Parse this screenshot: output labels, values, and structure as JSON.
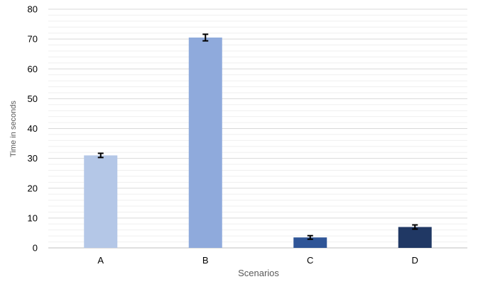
{
  "chart_data": {
    "type": "bar",
    "categories": [
      "A",
      "B",
      "C",
      "D"
    ],
    "values": [
      31,
      70.5,
      3.5,
      7
    ],
    "error": [
      0.7,
      1.1,
      0.6,
      0.7
    ],
    "colors": [
      "#b4c7e7",
      "#8faadc",
      "#2f5597",
      "#203864"
    ],
    "xlabel": "Scenarios",
    "ylabel": "Time in seconds",
    "ylim": [
      0,
      80
    ],
    "yticks": [
      0,
      10,
      20,
      30,
      40,
      50,
      60,
      70,
      80
    ],
    "minor_grid_step": 2,
    "grid": true,
    "gridColor": "#d9d9d9",
    "minorGridColor": "#efefef",
    "errorBarColor": "#000000"
  }
}
